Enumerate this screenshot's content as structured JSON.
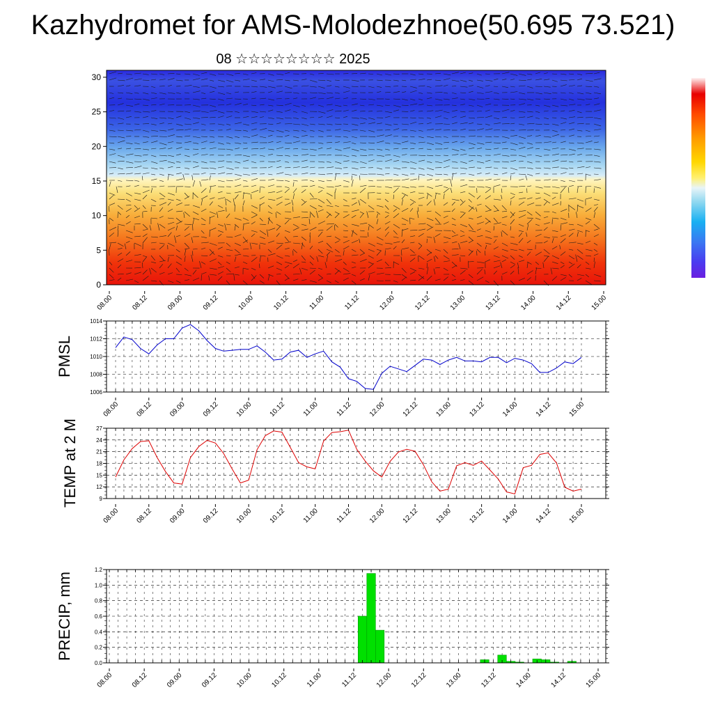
{
  "title": "Kazhydromet for AMS-Molodezhnoe(50.695 73.521)",
  "subtitle": "08 ☆☆☆☆☆☆☆☆ 2025",
  "colors": {
    "pmsl_line": "#0000cc",
    "temp_line": "#dd0000",
    "precip_bar": "#00e000",
    "precip_edge": "#009900"
  },
  "chart_data": [
    {
      "type": "heatmap",
      "name": "vertical-section",
      "x_tick_labels": [
        "08.00",
        "08.12",
        "09.00",
        "09.12",
        "10.00",
        "10.12",
        "11.00",
        "11.12",
        "12.00",
        "12.12",
        "13.00",
        "13.12",
        "14.00",
        "14.12",
        "15.00"
      ],
      "y_ticks": [
        0,
        5,
        10,
        15,
        20,
        25,
        30
      ],
      "ylim": [
        0,
        31
      ],
      "grid": false,
      "overlay": "wind vectors",
      "colorbar": "right, unlabeled"
    },
    {
      "type": "line",
      "name": "pmsl",
      "ylabel": "PMSL",
      "ylim": [
        1006,
        1014
      ],
      "y_ticks": [
        1006,
        1008,
        1010,
        1012,
        1014
      ],
      "x_tick_labels": [
        "08.00",
        "08.12",
        "09.00",
        "09.12",
        "10.00",
        "10.12",
        "11.00",
        "11.12",
        "12.00",
        "12.12",
        "13.00",
        "13.12",
        "14.00",
        "14.12",
        "15.00"
      ],
      "grid": true,
      "values": [
        1011.0,
        1012.2,
        1011.9,
        1010.9,
        1010.3,
        1011.3,
        1012.0,
        1012.0,
        1013.2,
        1013.6,
        1012.9,
        1011.8,
        1010.9,
        1010.6,
        1010.7,
        1010.8,
        1010.8,
        1011.2,
        1010.5,
        1009.6,
        1009.7,
        1010.5,
        1010.7,
        1009.9,
        1010.3,
        1010.6,
        1009.4,
        1008.8,
        1007.5,
        1007.2,
        1006.4,
        1006.3,
        1008.1,
        1008.9,
        1008.6,
        1008.3,
        1009.0,
        1009.7,
        1009.6,
        1009.1,
        1009.6,
        1009.9,
        1009.5,
        1009.5,
        1009.4,
        1009.9,
        1009.9,
        1009.3,
        1009.8,
        1009.6,
        1009.2,
        1008.2,
        1008.2,
        1008.7,
        1009.4,
        1009.2,
        1009.9
      ]
    },
    {
      "type": "line",
      "name": "temp",
      "ylabel": "TEMP at 2 M",
      "ylim": [
        9,
        27
      ],
      "y_ticks": [
        9,
        12,
        15,
        18,
        21,
        24,
        27
      ],
      "x_tick_labels": [
        "08.00",
        "08.12",
        "09.00",
        "09.12",
        "10.00",
        "10.12",
        "11.00",
        "11.12",
        "12.00",
        "12.12",
        "13.00",
        "13.12",
        "14.00",
        "14.12",
        "15.00"
      ],
      "grid": true,
      "values": [
        14.5,
        18.9,
        21.8,
        23.6,
        23.8,
        19.5,
        15.9,
        13.0,
        12.7,
        19.5,
        22.3,
        23.9,
        23.2,
        20.5,
        16.6,
        13.0,
        13.7,
        21.5,
        25.1,
        26.3,
        26.0,
        22.1,
        18.2,
        17.1,
        16.6,
        23.7,
        25.9,
        26.1,
        26.5,
        21.6,
        18.6,
        16.1,
        14.5,
        18.5,
        20.9,
        21.6,
        21.1,
        17.7,
        13.3,
        10.9,
        11.4,
        17.4,
        18.2,
        17.5,
        18.6,
        16.3,
        14.0,
        10.7,
        10.2,
        16.9,
        17.5,
        20.3,
        20.7,
        18.1,
        11.9,
        10.9,
        11.4
      ]
    },
    {
      "type": "bar",
      "name": "precip",
      "ylabel": "PRECIP, mm",
      "ylim": [
        0,
        1.2
      ],
      "y_ticks": [
        "0.0",
        "0.2",
        "0.4",
        "0.6",
        "0.8",
        "1.0",
        "1.2"
      ],
      "x_tick_labels": [
        "08.00",
        "08.12",
        "09.00",
        "09.12",
        "10.00",
        "10.12",
        "11.00",
        "11.12",
        "12.00",
        "12.12",
        "13.00",
        "13.12",
        "14.00",
        "14.12",
        "15.00"
      ],
      "grid": true,
      "values": [
        0,
        0,
        0,
        0,
        0,
        0,
        0,
        0,
        0,
        0,
        0,
        0,
        0,
        0,
        0,
        0,
        0,
        0,
        0,
        0,
        0,
        0,
        0,
        0,
        0,
        0,
        0,
        0,
        0,
        0.6,
        1.15,
        0.42,
        0,
        0,
        0,
        0,
        0,
        0,
        0,
        0,
        0,
        0,
        0,
        0.04,
        0,
        0.1,
        0.02,
        0.01,
        0,
        0.05,
        0.04,
        0.01,
        0,
        0.02,
        0,
        0,
        0
      ]
    }
  ]
}
